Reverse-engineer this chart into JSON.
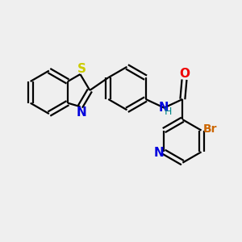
{
  "bg_color": "#efefef",
  "bond_color": "#000000",
  "bond_lw": 1.6,
  "S_color": "#cccc00",
  "N_color": "#0000dd",
  "O_color": "#ee0000",
  "Br_color": "#cc6600",
  "NH_color": "#008888",
  "figsize": [
    3.0,
    3.0
  ],
  "dpi": 100,
  "xlim": [
    0,
    10
  ],
  "ylim": [
    0,
    10
  ]
}
